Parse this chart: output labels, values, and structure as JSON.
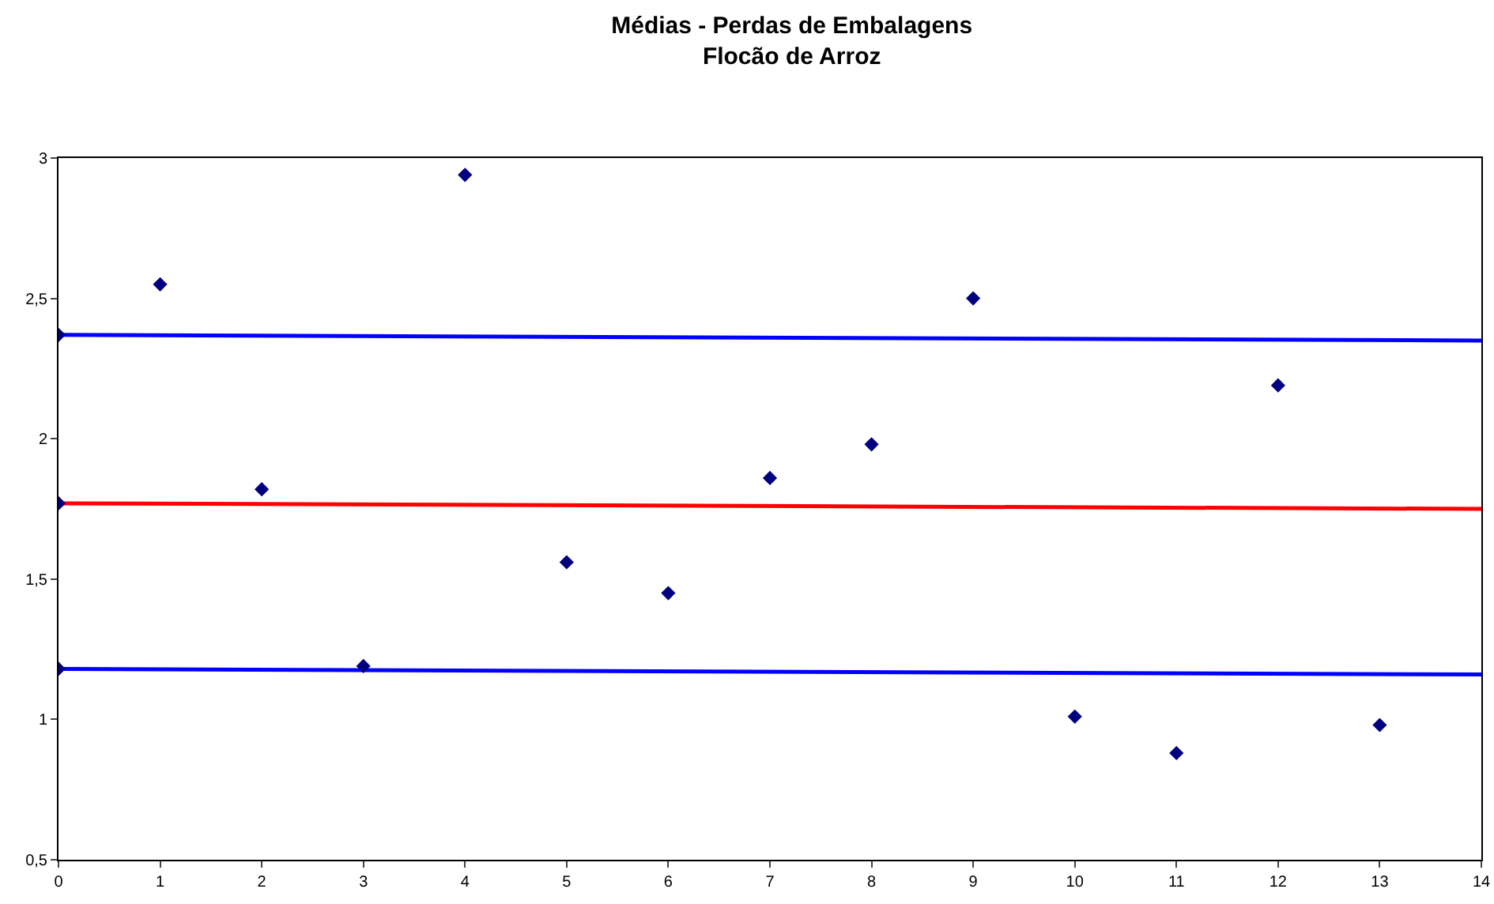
{
  "chart_data": {
    "type": "scatter",
    "title": "Médias - Perdas de Embalagens\nFlocão de Arroz",
    "xlim": [
      0,
      14
    ],
    "xticks": [
      0,
      1,
      2,
      3,
      4,
      5,
      6,
      7,
      8,
      9,
      10,
      11,
      12,
      13,
      14
    ],
    "ylim": [
      0.5,
      3
    ],
    "yticks": [
      {
        "value": 0.5,
        "label": "0,5"
      },
      1,
      {
        "value": 1.5,
        "label": "1,5"
      },
      2,
      {
        "value": 2.5,
        "label": "2,5"
      },
      3
    ],
    "grid": false,
    "marker": "diamond",
    "series": [
      {
        "type": "line",
        "marker": "none",
        "color": "#0000ff",
        "x": [
          0,
          14
        ],
        "values": [
          2.37,
          2.35
        ]
      },
      {
        "type": "line",
        "marker": "none",
        "color": "#ff0000",
        "x": [
          0,
          14
        ],
        "values": [
          1.77,
          1.75
        ]
      },
      {
        "type": "line",
        "marker": "none",
        "color": "#0000ff",
        "x": [
          0,
          14
        ],
        "values": [
          1.18,
          1.16
        ]
      },
      {
        "color": "#000080",
        "x": [
          0,
          0,
          0,
          1,
          2,
          3,
          4,
          5,
          6,
          7,
          8,
          9,
          10,
          11,
          12,
          13
        ],
        "values": [
          2.37,
          1.77,
          1.18,
          2.55,
          1.82,
          1.19,
          2.94,
          1.56,
          1.45,
          1.86,
          1.98,
          2.5,
          1.01,
          0.88,
          2.19,
          0.98
        ]
      }
    ]
  }
}
